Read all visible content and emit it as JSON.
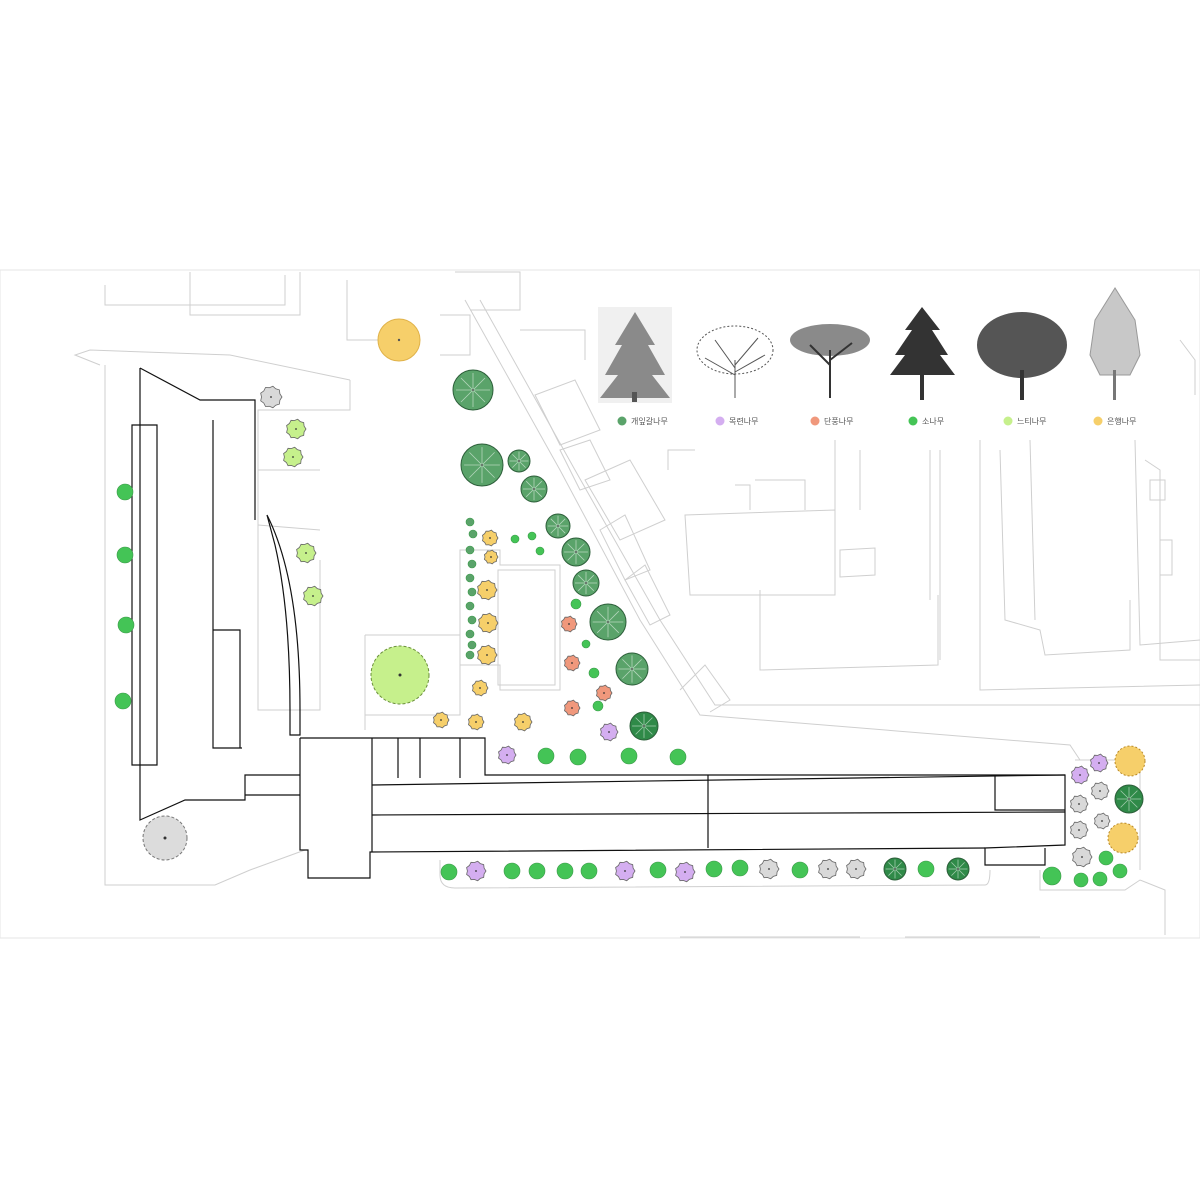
{
  "legend": {
    "items": [
      {
        "id": "gaeip",
        "label": "개잎갈나무",
        "color": "#5aa36a",
        "icon": "cedar-tree-icon"
      },
      {
        "id": "mokryeon",
        "label": "목련나무",
        "color": "#d4aef0",
        "icon": "magnolia-tree-icon"
      },
      {
        "id": "danpung",
        "label": "단풍나무",
        "color": "#f0987c",
        "icon": "maple-tree-icon"
      },
      {
        "id": "sonamu",
        "label": "소나무",
        "color": "#44c456",
        "icon": "pine-tree-icon"
      },
      {
        "id": "neuti",
        "label": "느티나무",
        "color": "#c6f08c",
        "icon": "zelkova-tree-icon"
      },
      {
        "id": "eunhaeng",
        "label": "은행나무",
        "color": "#f6cf6a",
        "icon": "ginkgo-tree-icon"
      }
    ]
  },
  "extra_colors": {
    "existing_tree": "#d9d9d9",
    "dark_cedar": "#2f8a48",
    "building_outline": "#111111",
    "context_line": "#c8c8c8"
  }
}
